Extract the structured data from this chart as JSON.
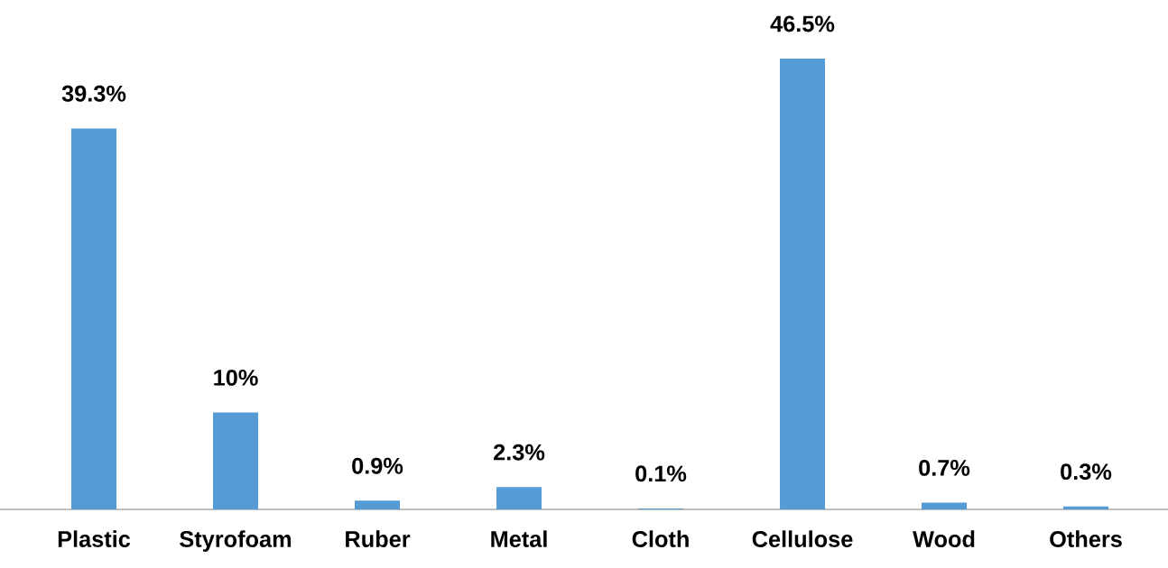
{
  "chart_data": {
    "type": "bar",
    "categories": [
      "Plastic",
      "Styrofoam",
      "Ruber",
      "Metal",
      "Cloth",
      "Cellulose",
      "Wood",
      "Others"
    ],
    "values": [
      39.3,
      10,
      0.9,
      2.3,
      0.1,
      46.5,
      0.7,
      0.3
    ],
    "value_labels": [
      "39.3%",
      "10%",
      "0.9%",
      "2.3%",
      "0.1%",
      "46.5%",
      "0.7%",
      "0.3%"
    ],
    "color": "#559bd5"
  }
}
